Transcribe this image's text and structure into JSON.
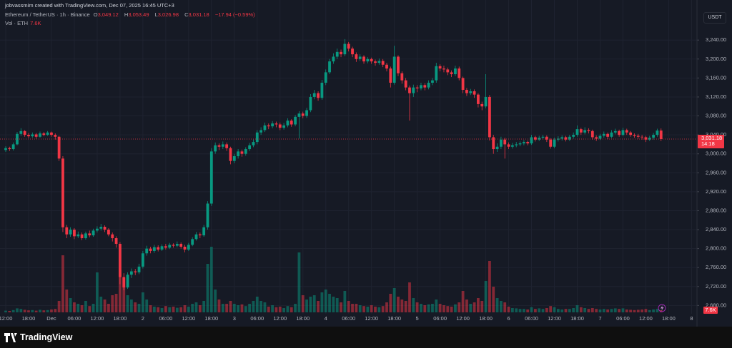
{
  "header": {
    "credit": "jobvassmim created with TradingView.com, Dec 07, 2025 16:45 UTC+3",
    "symbol": "Ethereum / TetherUS · 1h · Binance",
    "ohlc": [
      {
        "key": "O",
        "value": "3,049.12"
      },
      {
        "key": "H",
        "value": "3,053.49"
      },
      {
        "key": "L",
        "value": "3,026.98"
      },
      {
        "key": "C",
        "value": "3,031.18"
      }
    ],
    "change": "−17.94 (−0.59%)",
    "vol_label": "Vol · ETH",
    "vol_value": "7.6K"
  },
  "currency_button": "USDT",
  "footer": {
    "logo": "TradingView"
  },
  "chart_data": {
    "type": "candlestick",
    "up_color": "#089981",
    "down_color": "#f23645",
    "grid": true,
    "categories": [
      "12:00",
      null,
      null,
      null,
      null,
      null,
      "18:00",
      null,
      null,
      null,
      null,
      null,
      "Dec",
      null,
      null,
      null,
      null,
      null,
      "06:00",
      null,
      null,
      null,
      null,
      null,
      "12:00",
      null,
      null,
      null,
      null,
      null,
      "18:00",
      null,
      null,
      null,
      null,
      null,
      "2",
      null,
      null,
      null,
      null,
      null,
      "06:00",
      null,
      null,
      null,
      null,
      null,
      "12:00",
      null,
      null,
      null,
      null,
      null,
      "18:00",
      null,
      null,
      null,
      null,
      null,
      "3",
      null,
      null,
      null,
      null,
      null,
      "06:00",
      null,
      null,
      null,
      null,
      null,
      "12:00",
      null,
      null,
      null,
      null,
      null,
      "18:00",
      null,
      null,
      null,
      null,
      null,
      "4",
      null,
      null,
      null,
      null,
      null,
      "06:00",
      null,
      null,
      null,
      null,
      null,
      "12:00",
      null,
      null,
      null,
      null,
      null,
      "18:00",
      null,
      null,
      null,
      null,
      null,
      "5",
      null,
      null,
      null,
      null,
      null,
      "06:00",
      null,
      null,
      null,
      null,
      null,
      "12:00",
      null,
      null,
      null,
      null,
      null,
      "18:00",
      null,
      null,
      null,
      null,
      null,
      "6",
      null,
      null,
      null,
      null,
      null,
      "06:00",
      null,
      null,
      null,
      null,
      null,
      "12:00",
      null,
      null,
      null,
      null,
      null,
      "18:00",
      null,
      null,
      null,
      null,
      null,
      "7",
      null,
      null,
      null,
      null,
      null,
      "06:00",
      null,
      null,
      null,
      null,
      null,
      "12:00",
      null,
      null,
      null,
      null,
      null,
      "18:00",
      null,
      null,
      null,
      null,
      null,
      "8"
    ],
    "open": [
      3008,
      3012,
      3010,
      3020,
      3042,
      3048,
      3040,
      3037,
      3041,
      3036,
      3043,
      3040,
      3045,
      3040,
      3036,
      2990,
      2845,
      2830,
      2840,
      2826,
      2830,
      2822,
      2832,
      2828,
      2838,
      2842,
      2846,
      2840,
      2830,
      2822,
      2810,
      2740,
      2718,
      2745,
      2752,
      2750,
      2762,
      2790,
      2800,
      2795,
      2803,
      2798,
      2805,
      2802,
      2808,
      2806,
      2810,
      2804,
      2798,
      2808,
      2820,
      2830,
      2828,
      2845,
      2895,
      3005,
      3018,
      3015,
      3020,
      3012,
      2985,
      2995,
      3005,
      3000,
      3010,
      3018,
      3025,
      3045,
      3050,
      3060,
      3058,
      3064,
      3062,
      3055,
      3060,
      3070,
      3062,
      3078,
      3085,
      3080,
      3092,
      3120,
      3128,
      3118,
      3150,
      3172,
      3195,
      3205,
      3215,
      3210,
      3232,
      3222,
      3210,
      3200,
      3205,
      3195,
      3200,
      3195,
      3192,
      3196,
      3188,
      3180,
      3150,
      3205,
      3170,
      3155,
      3140,
      3128,
      3140,
      3138,
      3145,
      3140,
      3150,
      3155,
      3185,
      3180,
      3178,
      3172,
      3168,
      3180,
      3160,
      3135,
      3128,
      3132,
      3125,
      3105,
      3100,
      3120,
      3035,
      3010,
      3015,
      3030,
      3020,
      3015,
      3018,
      3020,
      3022,
      3025,
      3022,
      3035,
      3030,
      3034,
      3036,
      3030,
      3015,
      3030,
      3032,
      3035,
      3030,
      3036,
      3040,
      3052,
      3045,
      3050,
      3048,
      3035,
      3032,
      3038,
      3042,
      3036,
      3045,
      3048,
      3040,
      3050,
      3045,
      3040,
      3038,
      3036,
      3035,
      3030,
      3034,
      3040,
      3049.12,
      null,
      null,
      null,
      null,
      null,
      null,
      null,
      null
    ],
    "high": [
      3016,
      3015,
      3024,
      3046,
      3054,
      3050,
      3044,
      3045,
      3044,
      3047,
      3046,
      3048,
      3047,
      3043,
      3038,
      2995,
      2850,
      2845,
      2843,
      2836,
      2834,
      2836,
      2838,
      2842,
      2847,
      2852,
      2849,
      2843,
      2834,
      2826,
      2814,
      2748,
      2750,
      2758,
      2757,
      2768,
      2795,
      2806,
      2804,
      2808,
      2807,
      2809,
      2810,
      2812,
      2811,
      2815,
      2813,
      2808,
      2812,
      2824,
      2835,
      2834,
      2850,
      2900,
      3012,
      3024,
      3022,
      3026,
      3024,
      3015,
      3000,
      3010,
      3009,
      3014,
      3023,
      3030,
      3050,
      3056,
      3066,
      3064,
      3069,
      3068,
      3066,
      3065,
      3075,
      3073,
      3082,
      3090,
      3089,
      3097,
      3126,
      3135,
      3132,
      3156,
      3178,
      3200,
      3212,
      3222,
      3220,
      3242,
      3236,
      3226,
      3214,
      3210,
      3208,
      3204,
      3203,
      3199,
      3201,
      3200,
      3192,
      3184,
      3228,
      3208,
      3174,
      3160,
      3144,
      3146,
      3145,
      3150,
      3149,
      3155,
      3160,
      3192,
      3189,
      3186,
      3182,
      3176,
      3186,
      3184,
      3163,
      3139,
      3137,
      3136,
      3128,
      3110,
      3168,
      3124,
      3040,
      3022,
      3036,
      3034,
      3024,
      3023,
      3025,
      3026,
      3029,
      3028,
      3040,
      3038,
      3038,
      3040,
      3039,
      3033,
      3034,
      3037,
      3039,
      3038,
      3040,
      3045,
      3060,
      3055,
      3056,
      3054,
      3051,
      3039,
      3042,
      3047,
      3045,
      3050,
      3053,
      3051,
      3055,
      3053,
      3048,
      3043,
      3042,
      3040,
      3038,
      3038,
      3044,
      3053,
      3053.49,
      null,
      null,
      null,
      null,
      null,
      null,
      null,
      null
    ],
    "low": [
      3004,
      3006,
      3007,
      3018,
      3038,
      3036,
      3033,
      3034,
      3032,
      3034,
      3037,
      3038,
      3036,
      3030,
      2985,
      2835,
      2822,
      2825,
      2820,
      2822,
      2818,
      2819,
      2824,
      2825,
      2834,
      2838,
      2835,
      2826,
      2815,
      2802,
      2725,
      2712,
      2715,
      2738,
      2744,
      2746,
      2758,
      2785,
      2790,
      2791,
      2794,
      2795,
      2798,
      2799,
      2802,
      2803,
      2800,
      2792,
      2795,
      2805,
      2817,
      2822,
      2825,
      2840,
      2890,
      3000,
      3008,
      3010,
      3006,
      2978,
      2980,
      2990,
      2994,
      2996,
      3006,
      3014,
      3020,
      3040,
      3046,
      3052,
      3054,
      3056,
      3050,
      3051,
      3056,
      3057,
      3058,
      3032,
      3075,
      3076,
      3088,
      3115,
      3112,
      3114,
      3145,
      3168,
      3190,
      3200,
      3204,
      3206,
      3216,
      3204,
      3194,
      3196,
      3190,
      3191,
      3190,
      3186,
      3188,
      3183,
      3174,
      3140,
      3146,
      3164,
      3148,
      3134,
      3070,
      3120,
      3130,
      3134,
      3134,
      3136,
      3145,
      3150,
      3174,
      3172,
      3166,
      3162,
      3164,
      3155,
      3128,
      3122,
      3124,
      3118,
      3098,
      3092,
      3096,
      3028,
      3000,
      3004,
      3010,
      2990,
      3010,
      3011,
      3014,
      3016,
      3018,
      3018,
      3019,
      3026,
      3027,
      3030,
      3025,
      3011,
      3012,
      3026,
      3028,
      3026,
      3027,
      3032,
      3036,
      3040,
      3041,
      3043,
      3030,
      3027,
      3029,
      3034,
      3031,
      3033,
      3041,
      3036,
      3037,
      3040,
      3036,
      3034,
      3032,
      3030,
      3025,
      3027,
      3030,
      3036,
      3026.98,
      null,
      null,
      null,
      null,
      null,
      null,
      null,
      null
    ],
    "close": [
      3012,
      3010,
      3020,
      3042,
      3048,
      3040,
      3037,
      3041,
      3036,
      3043,
      3040,
      3045,
      3040,
      3036,
      2990,
      2845,
      2830,
      2840,
      2826,
      2830,
      2822,
      2832,
      2828,
      2838,
      2842,
      2846,
      2840,
      2830,
      2822,
      2810,
      2740,
      2718,
      2745,
      2752,
      2750,
      2762,
      2790,
      2800,
      2795,
      2803,
      2798,
      2805,
      2802,
      2808,
      2806,
      2810,
      2804,
      2798,
      2808,
      2820,
      2830,
      2828,
      2845,
      2895,
      3005,
      3018,
      3015,
      3020,
      3012,
      2985,
      2995,
      3005,
      3000,
      3010,
      3018,
      3025,
      3045,
      3050,
      3060,
      3058,
      3064,
      3062,
      3055,
      3060,
      3070,
      3062,
      3078,
      3085,
      3080,
      3092,
      3120,
      3128,
      3118,
      3150,
      3172,
      3195,
      3205,
      3215,
      3210,
      3232,
      3222,
      3210,
      3200,
      3205,
      3195,
      3200,
      3195,
      3192,
      3196,
      3188,
      3180,
      3150,
      3205,
      3170,
      3155,
      3140,
      3128,
      3140,
      3138,
      3145,
      3140,
      3150,
      3155,
      3185,
      3180,
      3178,
      3172,
      3168,
      3180,
      3160,
      3135,
      3128,
      3132,
      3125,
      3105,
      3100,
      3120,
      3035,
      3010,
      3015,
      3030,
      3020,
      3015,
      3018,
      3020,
      3022,
      3025,
      3022,
      3035,
      3030,
      3034,
      3036,
      3030,
      3015,
      3030,
      3032,
      3035,
      3030,
      3036,
      3040,
      3052,
      3045,
      3050,
      3048,
      3035,
      3032,
      3038,
      3042,
      3036,
      3045,
      3048,
      3040,
      3050,
      3045,
      3040,
      3038,
      3036,
      3035,
      3030,
      3034,
      3040,
      3049.12,
      3031.18,
      null,
      null,
      null,
      null,
      null,
      null,
      null,
      null
    ],
    "volume": [
      6000,
      5000,
      8000,
      14000,
      12000,
      9000,
      7000,
      8000,
      6000,
      9000,
      7000,
      8000,
      10000,
      12000,
      40000,
      200000,
      80000,
      50000,
      35000,
      30000,
      25000,
      40000,
      22000,
      30000,
      140000,
      55000,
      45000,
      30000,
      60000,
      65000,
      150000,
      120000,
      60000,
      45000,
      35000,
      30000,
      70000,
      45000,
      25000,
      20000,
      18000,
      15000,
      22000,
      18000,
      20000,
      16000,
      18000,
      25000,
      20000,
      30000,
      35000,
      25000,
      40000,
      170000,
      230000,
      80000,
      45000,
      30000,
      30000,
      40000,
      30000,
      25000,
      28000,
      22000,
      30000,
      40000,
      55000,
      40000,
      35000,
      20000,
      25000,
      18000,
      20000,
      15000,
      22000,
      18000,
      30000,
      210000,
      60000,
      45000,
      55000,
      60000,
      40000,
      70000,
      80000,
      65000,
      55000,
      50000,
      35000,
      75000,
      40000,
      30000,
      30000,
      25000,
      22000,
      20000,
      25000,
      20000,
      18000,
      22000,
      35000,
      65000,
      85000,
      55000,
      45000,
      40000,
      105000,
      50000,
      35000,
      30000,
      25000,
      28000,
      30000,
      45000,
      30000,
      25000,
      22000,
      20000,
      28000,
      35000,
      75000,
      45000,
      30000,
      35000,
      50000,
      40000,
      110000,
      180000,
      90000,
      50000,
      40000,
      35000,
      20000,
      15000,
      14000,
      12000,
      12000,
      10000,
      18000,
      12000,
      14000,
      12000,
      15000,
      22000,
      18000,
      12000,
      10000,
      12000,
      12000,
      15000,
      25000,
      18000,
      15000,
      12000,
      15000,
      12000,
      10000,
      12000,
      10000,
      12000,
      14000,
      12000,
      14000,
      10000,
      9000,
      8000,
      9000,
      10000,
      12000,
      8000,
      10000,
      12000,
      7600,
      null,
      null,
      null,
      null,
      null,
      null,
      null,
      null
    ],
    "ylim": [
      2664,
      3302
    ],
    "yticks": [
      {
        "value": 2680,
        "label": "2,680.00"
      },
      {
        "value": 2720,
        "label": "2,720.00"
      },
      {
        "value": 2760,
        "label": "2,760.00"
      },
      {
        "value": 2800,
        "label": "2,800.00"
      },
      {
        "value": 2840,
        "label": "2,840.00"
      },
      {
        "value": 2880,
        "label": "2,880.00"
      },
      {
        "value": 2920,
        "label": "2,920.00"
      },
      {
        "value": 2960,
        "label": "2,960.00"
      },
      {
        "value": 3000,
        "label": "3,000.00"
      },
      {
        "value": 3040,
        "label": "3,040.00"
      },
      {
        "value": 3080,
        "label": "3,080.00"
      },
      {
        "value": 3120,
        "label": "3,120.00"
      },
      {
        "value": 3160,
        "label": "3,160.00"
      },
      {
        "value": 3200,
        "label": "3,200.00"
      },
      {
        "value": 3240,
        "label": "3,240.00"
      }
    ],
    "last_price_label": "3,031.18",
    "countdown": "14:18",
    "last_volume_label": "7.6K"
  }
}
